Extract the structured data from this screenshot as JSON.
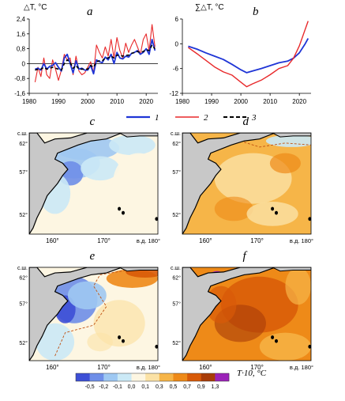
{
  "colors": {
    "series1": "#1f35d6",
    "series2": "#e8282a",
    "series3": "#000000",
    "land": "#c8c8c8",
    "coast": "#000000"
  },
  "chart_data": [
    {
      "type": "line",
      "panel_label": "a",
      "ylabel": "△T, °C",
      "xlim": [
        1980,
        2024
      ],
      "ylim": [
        -1.6,
        2.4
      ],
      "yticks": [
        "-1,6",
        "-0,8",
        "0",
        "0,8",
        "1,6",
        "2,4"
      ],
      "xticks": [
        "1980",
        "1990",
        "2000",
        "2010",
        "2020"
      ],
      "x": [
        1982,
        1983,
        1984,
        1985,
        1986,
        1987,
        1988,
        1989,
        1990,
        1991,
        1992,
        1993,
        1994,
        1995,
        1996,
        1997,
        1998,
        1999,
        2000,
        2001,
        2002,
        2003,
        2004,
        2005,
        2006,
        2007,
        2008,
        2009,
        2010,
        2011,
        2012,
        2013,
        2014,
        2015,
        2016,
        2017,
        2018,
        2019,
        2020,
        2021,
        2022,
        2023
      ],
      "series": [
        {
          "name": "1",
          "values": [
            -0.3,
            -0.25,
            -0.35,
            0.0,
            -0.3,
            -0.15,
            -0.1,
            0.05,
            -0.2,
            -0.4,
            0.3,
            0.5,
            0.0,
            -0.5,
            0.15,
            -0.3,
            -0.25,
            -0.35,
            -0.35,
            -0.1,
            -0.55,
            0.2,
            0.1,
            0.05,
            0.35,
            0.2,
            0.5,
            0.0,
            0.6,
            0.3,
            0.25,
            0.4,
            0.35,
            0.55,
            0.6,
            0.7,
            0.5,
            0.6,
            0.8,
            0.5,
            1.3,
            0.7
          ]
        },
        {
          "name": "2",
          "values": [
            -1.0,
            -0.2,
            -0.7,
            0.3,
            -0.6,
            -0.8,
            0.2,
            -0.3,
            -0.9,
            -0.35,
            0.5,
            0.2,
            0.3,
            -0.6,
            0.4,
            -0.4,
            -0.6,
            -0.5,
            -0.2,
            0.1,
            -0.5,
            1.0,
            0.6,
            0.3,
            0.9,
            0.4,
            1.3,
            0.3,
            1.4,
            0.7,
            0.3,
            1.1,
            0.6,
            1.0,
            1.3,
            0.9,
            0.5,
            1.3,
            1.6,
            0.7,
            2.1,
            0.9
          ]
        },
        {
          "name": "3",
          "values": [
            -0.35,
            -0.3,
            -0.3,
            -0.2,
            -0.3,
            -0.25,
            -0.2,
            -0.25,
            -0.3,
            -0.35,
            0.0,
            0.2,
            0.05,
            -0.25,
            -0.1,
            -0.3,
            -0.3,
            -0.3,
            -0.3,
            -0.1,
            -0.2,
            0.1,
            0.15,
            0.15,
            0.3,
            0.3,
            0.4,
            0.3,
            0.45,
            0.45,
            0.4,
            0.45,
            0.45,
            0.55,
            0.6,
            0.65,
            0.6,
            0.65,
            0.75,
            0.7,
            1.0,
            0.8
          ]
        }
      ]
    },
    {
      "type": "line",
      "panel_label": "b",
      "ylabel": "∑△T, °C",
      "xlim": [
        1980,
        2024
      ],
      "ylim": [
        -12,
        6
      ],
      "yticks": [
        "-12",
        "-6",
        "0",
        "6"
      ],
      "xticks": [
        "1980",
        "1990",
        "2000",
        "2010",
        "2020"
      ],
      "x": [
        1982,
        1985,
        1988,
        1991,
        1994,
        1997,
        2000,
        2002,
        2004,
        2007,
        2010,
        2013,
        2016,
        2018,
        2020,
        2022,
        2023
      ],
      "series": [
        {
          "name": "1",
          "values": [
            -0.6,
            -1.3,
            -2.2,
            -3.0,
            -3.8,
            -5.0,
            -6.3,
            -7.0,
            -6.6,
            -6.0,
            -5.3,
            -4.6,
            -4.2,
            -3.5,
            -2.2,
            0.0,
            1.3
          ]
        },
        {
          "name": "2",
          "values": [
            -0.9,
            -2.4,
            -4.0,
            -5.6,
            -6.8,
            -7.6,
            -9.3,
            -10.4,
            -9.7,
            -8.8,
            -7.5,
            -6.0,
            -5.3,
            -3.5,
            -0.5,
            3.5,
            5.5
          ]
        }
      ]
    },
    {
      "type": "heatmap",
      "panels": [
        "c",
        "d",
        "e",
        "f"
      ],
      "lat_labels": [
        "с.ш.",
        "62°",
        "57°",
        "52°"
      ],
      "lon_labels": [
        "160°",
        "170°",
        "в.д. 180°"
      ],
      "colorbar_label": "T·10, °C",
      "colorbar_ticks": [
        "-0,5",
        "-0,2",
        "-0,1",
        "0,0",
        "0,1",
        "0,3",
        "0,5",
        "0,7",
        "0,9",
        "1,3"
      ],
      "colorbar_colors": [
        "#3d4fd6",
        "#6e8ee8",
        "#9ec8f2",
        "#cbe9f6",
        "#fdf6e2",
        "#fbe2a6",
        "#f6b548",
        "#ee8a18",
        "#d85a08",
        "#a83c08",
        "#9b22b8"
      ]
    }
  ],
  "legend": [
    {
      "name": "1"
    },
    {
      "name": "2"
    },
    {
      "name": "3"
    }
  ]
}
